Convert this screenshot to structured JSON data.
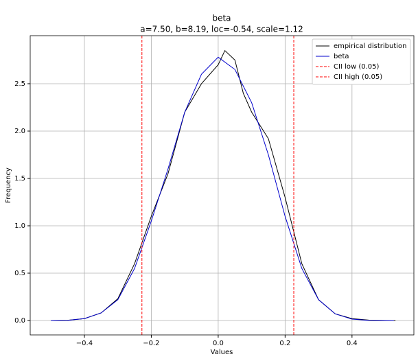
{
  "chart_data": {
    "type": "line",
    "title": "beta",
    "subtitle": "a=7.50, b=8.19, loc=-0.54, scale=1.12",
    "x_label": "Values",
    "y_label": "Frequency",
    "series": [
      {
        "name": "empirical distribution",
        "color": "#000000",
        "x": [
          -0.5,
          -0.45,
          -0.4,
          -0.35,
          -0.3,
          -0.25,
          -0.2,
          -0.15,
          -0.1,
          -0.05,
          0,
          0.02,
          0.05,
          0.075,
          0.1,
          0.15,
          0.2,
          0.25,
          0.3,
          0.35,
          0.4,
          0.45,
          0.5,
          0.53
        ],
        "values": [
          0,
          0.003,
          0.02,
          0.08,
          0.23,
          0.6,
          1.1,
          1.55,
          2.2,
          2.5,
          2.7,
          2.85,
          2.75,
          2.4,
          2.2,
          1.92,
          1.3,
          0.6,
          0.22,
          0.07,
          0.02,
          0.005,
          0.001,
          0
        ]
      },
      {
        "name": "beta",
        "color": "#0000cc",
        "x": [
          -0.5,
          -0.45,
          -0.4,
          -0.35,
          -0.3,
          -0.25,
          -0.2,
          -0.15,
          -0.1,
          -0.05,
          0,
          0.05,
          0.1,
          0.15,
          0.2,
          0.25,
          0.3,
          0.35,
          0.4,
          0.45,
          0.5,
          0.525
        ],
        "values": [
          0,
          0.002,
          0.02,
          0.08,
          0.22,
          0.55,
          1.05,
          1.6,
          2.2,
          2.6,
          2.78,
          2.65,
          2.3,
          1.75,
          1.1,
          0.55,
          0.22,
          0.07,
          0.015,
          0.002,
          0,
          0
        ]
      }
    ],
    "vlines": [
      {
        "name": "CII low (0.05)",
        "color": "#ff0000",
        "x": -0.228
      },
      {
        "name": "CII high (0.05)",
        "color": "#ff0000",
        "x": 0.226
      }
    ],
    "xlim": [
      -0.562,
      0.585
    ],
    "ylim": [
      -0.152,
      3.007
    ],
    "xticks": [
      {
        "value": -0.4,
        "label": "−0.4"
      },
      {
        "value": -0.2,
        "label": "−0.2"
      },
      {
        "value": 0,
        "label": "0.0"
      },
      0.2,
      0.4
    ],
    "yticks": [
      {
        "value": 0,
        "label": "0.0"
      },
      0.5,
      {
        "value": 1,
        "label": "1.0"
      },
      1.5,
      {
        "value": 2,
        "label": "2.0"
      },
      2.5
    ],
    "grid": true,
    "legend": "upper right"
  }
}
